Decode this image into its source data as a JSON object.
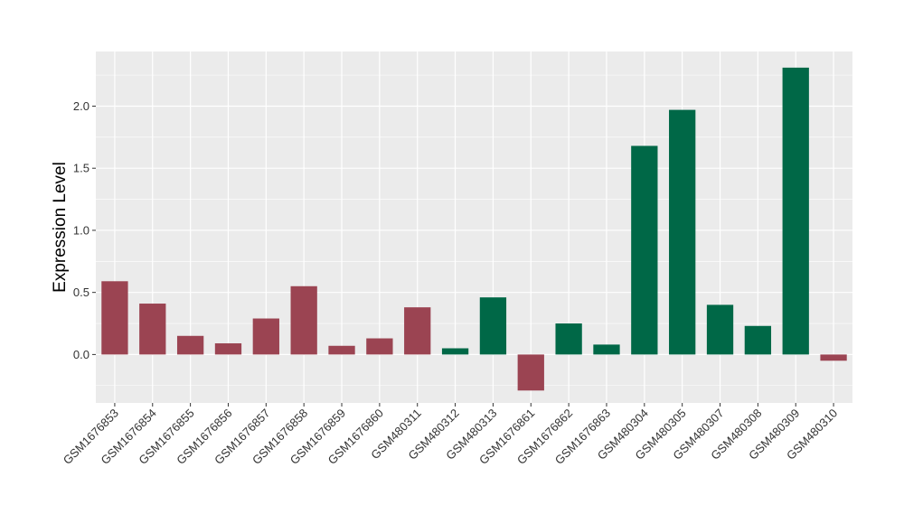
{
  "chart_data": {
    "type": "bar",
    "title": "",
    "xlabel": "",
    "ylabel": "Expression Level",
    "ylim": [
      -0.39,
      2.44
    ],
    "yticks": [
      0.0,
      0.5,
      1.0,
      1.5,
      2.0
    ],
    "ytick_labels": [
      "0.0",
      "0.5",
      "1.0",
      "1.5",
      "2.0"
    ],
    "grid": true,
    "legend": "none",
    "colors": {
      "group_a": "#9b4452",
      "group_b": "#006847",
      "panel": "#ebebeb",
      "gridline": "#ffffff"
    },
    "categories": [
      "GSM1676853",
      "GSM1676854",
      "GSM1676855",
      "GSM1676856",
      "GSM1676857",
      "GSM1676858",
      "GSM1676859",
      "GSM1676860",
      "GSM480311",
      "GSM480312",
      "GSM480313",
      "GSM1676861",
      "GSM1676862",
      "GSM1676863",
      "GSM480304",
      "GSM480305",
      "GSM480307",
      "GSM480308",
      "GSM480309",
      "GSM480310"
    ],
    "values": [
      0.59,
      0.41,
      0.15,
      0.09,
      0.29,
      0.55,
      0.07,
      0.13,
      0.38,
      0.05,
      0.46,
      -0.29,
      0.25,
      0.08,
      1.68,
      1.97,
      0.4,
      0.23,
      2.31,
      -0.05
    ],
    "bar_groups": [
      "a",
      "a",
      "a",
      "a",
      "a",
      "a",
      "a",
      "a",
      "a",
      "b",
      "b",
      "a",
      "b",
      "b",
      "b",
      "b",
      "b",
      "b",
      "b",
      "a"
    ]
  }
}
